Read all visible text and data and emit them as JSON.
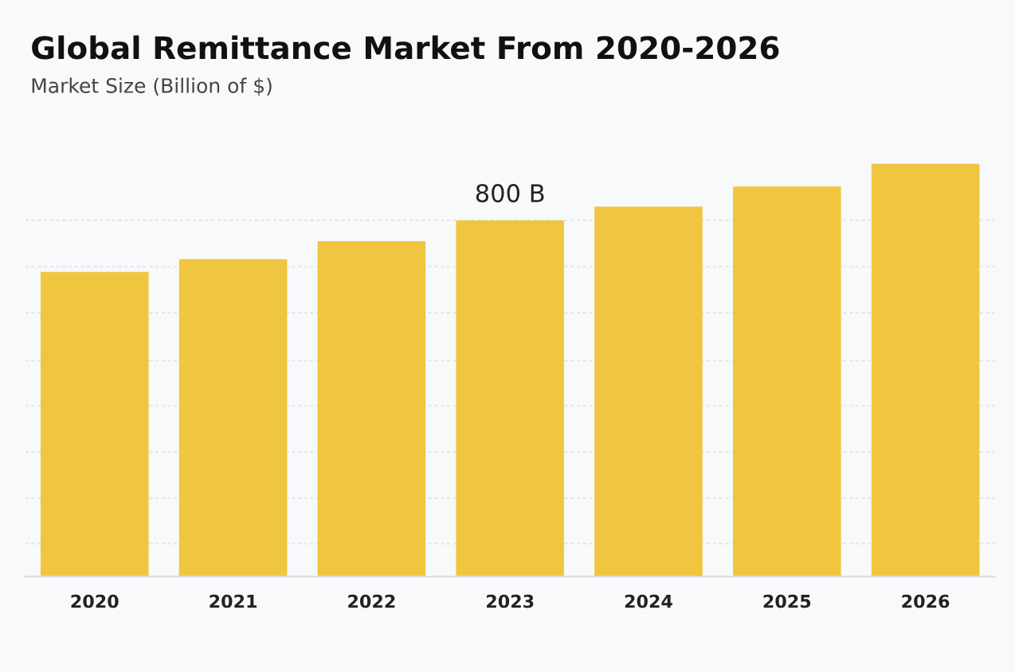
{
  "chart_data": {
    "type": "bar",
    "title": "Global Remittance Market From 2020-2026",
    "subtitle": "Market Size (Billion of $)",
    "categories": [
      "2020",
      "2021",
      "2022",
      "2023",
      "2024",
      "2025",
      "2026"
    ],
    "values": [
      684,
      713,
      753,
      800,
      831,
      876,
      927
    ],
    "value_labels": [
      null,
      null,
      null,
      "800 B",
      null,
      null,
      null
    ],
    "color": "#f0c540",
    "yticks": [
      {
        "value": 74,
        "label": null
      },
      {
        "value": 176,
        "label": null
      },
      {
        "value": 280,
        "label": null
      },
      {
        "value": 384,
        "label": null
      },
      {
        "value": 485,
        "label": null
      },
      {
        "value": 592,
        "label": null
      },
      {
        "value": 696,
        "label": null
      },
      {
        "value": 800,
        "label": null
      }
    ],
    "grid": "y",
    "tick_labels": "x"
  }
}
